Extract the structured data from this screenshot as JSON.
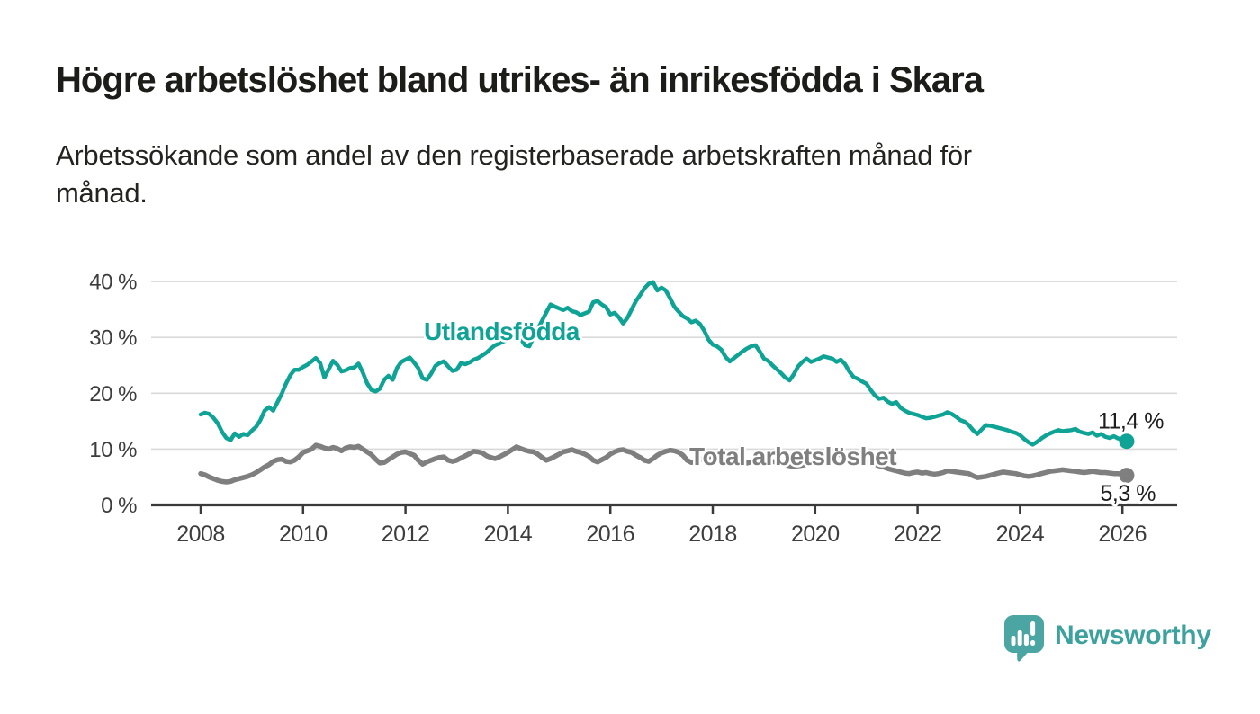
{
  "header": {
    "title": "Högre arbetslöshet bland utrikes- än inrikesfödda i Skara",
    "subtitle": "Arbetssökande som andel av den registerbaserade arbetskraften månad för\nmånad."
  },
  "chart_data": {
    "type": "line",
    "unit": "%",
    "grid": true,
    "x_start_year": 2008,
    "x_step_months": 1,
    "x_end_year_month": "2026-02",
    "xlim_years": [
      2007.0,
      2027.1
    ],
    "ylim": [
      0,
      42
    ],
    "x_ticks": [
      2008,
      2010,
      2012,
      2014,
      2016,
      2018,
      2020,
      2022,
      2024,
      2026
    ],
    "y_ticks": [
      {
        "value": 40,
        "label": "40 %"
      },
      {
        "value": 30,
        "label": "30 %"
      },
      {
        "value": 20,
        "label": "20 %"
      },
      {
        "value": 10,
        "label": "10 %"
      },
      {
        "value": 0,
        "label": "0 %"
      }
    ],
    "series": [
      {
        "name": "Utlandsfödda",
        "color": "#0FA396",
        "end_label": "11,4 %",
        "end_value": 11.4,
        "values": [
          16.2,
          16.5,
          16.3,
          15.6,
          14.6,
          13.1,
          12.0,
          11.6,
          12.8,
          12.2,
          12.7,
          12.5,
          13.3,
          14.0,
          15.2,
          16.9,
          17.5,
          16.9,
          18.4,
          19.9,
          21.7,
          23.2,
          24.2,
          24.2,
          24.7,
          25.1,
          25.7,
          26.3,
          25.4,
          22.8,
          24.3,
          25.8,
          25.1,
          23.9,
          24.1,
          24.5,
          24.6,
          25.3,
          23.7,
          21.8,
          20.6,
          20.3,
          20.8,
          22.4,
          23.1,
          22.4,
          24.5,
          25.6,
          26.0,
          26.4,
          25.5,
          24.5,
          22.7,
          22.4,
          23.5,
          24.9,
          25.4,
          25.7,
          24.8,
          24.0,
          24.2,
          25.4,
          25.2,
          25.5,
          26.0,
          26.3,
          26.8,
          27.3,
          28.0,
          28.6,
          28.9,
          29.3,
          29.6,
          30.2,
          30.6,
          29.8,
          28.6,
          28.4,
          30.0,
          31.5,
          33.0,
          34.5,
          35.9,
          35.5,
          35.2,
          34.9,
          35.3,
          34.7,
          34.5,
          34.0,
          34.3,
          34.6,
          36.3,
          36.5,
          35.9,
          35.4,
          34.1,
          34.4,
          33.6,
          32.5,
          33.5,
          35.0,
          36.5,
          37.6,
          38.8,
          39.6,
          39.9,
          38.4,
          38.9,
          38.4,
          37.0,
          35.5,
          34.6,
          33.8,
          33.4,
          32.7,
          33.0,
          32.4,
          31.2,
          29.6,
          28.7,
          28.4,
          27.8,
          26.5,
          25.7,
          26.3,
          26.9,
          27.5,
          28.0,
          28.4,
          28.6,
          27.5,
          26.2,
          25.8,
          25.0,
          24.3,
          23.6,
          22.8,
          22.3,
          23.4,
          24.8,
          25.6,
          26.2,
          25.6,
          25.9,
          26.2,
          26.6,
          26.4,
          26.2,
          25.6,
          26.0,
          25.2,
          23.9,
          22.9,
          22.6,
          22.1,
          21.7,
          20.6,
          19.6,
          19.0,
          19.2,
          18.5,
          18.1,
          18.4,
          17.4,
          16.9,
          16.5,
          16.3,
          16.1,
          15.8,
          15.5,
          15.6,
          15.8,
          16.0,
          16.2,
          16.6,
          16.3,
          15.8,
          15.2,
          14.9,
          14.3,
          13.4,
          12.7,
          13.5,
          14.3,
          14.2,
          14.0,
          13.8,
          13.6,
          13.4,
          13.1,
          12.9,
          12.5,
          11.8,
          11.2,
          10.8,
          11.3,
          11.9,
          12.4,
          12.8,
          13.1,
          13.4,
          13.2,
          13.3,
          13.4,
          13.6,
          13.1,
          12.9,
          12.7,
          13.0,
          12.4,
          12.7,
          12.2,
          12.0,
          12.3,
          11.9,
          11.7,
          11.4
        ]
      },
      {
        "name": "Total arbetslöshet",
        "color": "#7F7F7F",
        "end_label": "5,3 %",
        "end_value": 5.3,
        "values": [
          5.6,
          5.4,
          5.0,
          4.7,
          4.4,
          4.2,
          4.1,
          4.2,
          4.5,
          4.7,
          4.9,
          5.1,
          5.4,
          5.8,
          6.3,
          6.8,
          7.2,
          7.8,
          8.1,
          8.2,
          7.8,
          7.7,
          8.0,
          8.6,
          9.4,
          9.7,
          10.0,
          10.7,
          10.5,
          10.2,
          10.0,
          10.3,
          10.1,
          9.7,
          10.2,
          10.4,
          10.3,
          10.5,
          10.0,
          9.5,
          9.0,
          8.2,
          7.5,
          7.6,
          8.1,
          8.6,
          9.1,
          9.4,
          9.5,
          9.2,
          8.9,
          8.0,
          7.3,
          7.7,
          8.0,
          8.3,
          8.5,
          8.6,
          8.0,
          7.8,
          8.0,
          8.4,
          8.8,
          9.2,
          9.6,
          9.5,
          9.3,
          8.8,
          8.5,
          8.3,
          8.6,
          9.0,
          9.4,
          9.9,
          10.4,
          10.1,
          9.8,
          9.6,
          9.5,
          9.1,
          8.5,
          8.0,
          8.3,
          8.7,
          9.1,
          9.5,
          9.7,
          9.9,
          9.6,
          9.4,
          9.1,
          8.7,
          8.0,
          7.7,
          8.1,
          8.5,
          9.1,
          9.5,
          9.8,
          9.9,
          9.6,
          9.4,
          8.9,
          8.5,
          8.0,
          7.8,
          8.3,
          8.9,
          9.3,
          9.6,
          9.8,
          9.7,
          9.4,
          8.9,
          8.0,
          7.6,
          7.8,
          8.1,
          8.4,
          8.6,
          8.8,
          8.9,
          8.7,
          8.4,
          8.1,
          7.9,
          7.7,
          7.6,
          7.5,
          7.7,
          7.9,
          8.0,
          8.1,
          8.0,
          7.8,
          7.6,
          7.4,
          7.2,
          7.0,
          6.9,
          7.0,
          7.1,
          7.3,
          7.4,
          7.6,
          7.9,
          8.3,
          8.7,
          9.0,
          9.1,
          9.0,
          8.8,
          8.6,
          8.4,
          8.2,
          8.0,
          7.8,
          7.6,
          7.3,
          7.0,
          6.8,
          6.5,
          6.3,
          6.1,
          5.9,
          5.7,
          5.6,
          5.8,
          5.9,
          5.7,
          5.8,
          5.6,
          5.5,
          5.6,
          5.8,
          6.1,
          6.0,
          5.9,
          5.8,
          5.7,
          5.6,
          5.2,
          4.9,
          5.0,
          5.1,
          5.3,
          5.5,
          5.7,
          5.9,
          5.8,
          5.7,
          5.6,
          5.4,
          5.2,
          5.1,
          5.2,
          5.4,
          5.6,
          5.8,
          6.0,
          6.1,
          6.2,
          6.3,
          6.2,
          6.1,
          6.0,
          5.9,
          5.8,
          5.9,
          6.0,
          5.9,
          5.8,
          5.8,
          5.7,
          5.6,
          5.6,
          5.5,
          5.3
        ]
      }
    ]
  },
  "footer": {
    "brand": "Newsworthy"
  },
  "colors": {
    "accent_teal": "#0FA396",
    "series_gray": "#7F7F7F",
    "logo_teal": "#4BA5A2",
    "logo_text": "#3DA19E",
    "axis": "#3A3A3A",
    "gridline": "#D9D9D9",
    "text_dark": "#1C1C18"
  }
}
